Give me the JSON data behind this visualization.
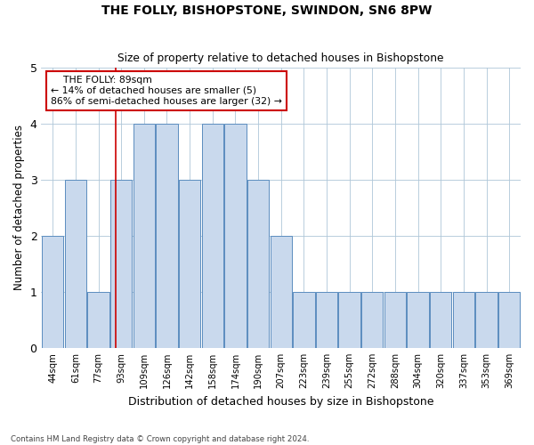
{
  "title": "THE FOLLY, BISHOPSTONE, SWINDON, SN6 8PW",
  "subtitle": "Size of property relative to detached houses in Bishopstone",
  "xlabel": "Distribution of detached houses by size in Bishopstone",
  "ylabel": "Number of detached properties",
  "categories": [
    "44sqm",
    "61sqm",
    "77sqm",
    "93sqm",
    "109sqm",
    "126sqm",
    "142sqm",
    "158sqm",
    "174sqm",
    "190sqm",
    "207sqm",
    "223sqm",
    "239sqm",
    "255sqm",
    "272sqm",
    "288sqm",
    "304sqm",
    "320sqm",
    "337sqm",
    "353sqm",
    "369sqm"
  ],
  "values": [
    2,
    3,
    1,
    3,
    4,
    4,
    3,
    4,
    4,
    3,
    2,
    1,
    1,
    1,
    1,
    1,
    1,
    1,
    1,
    1,
    1
  ],
  "bar_color": "#c9d9ed",
  "bar_edge_color": "#5b8dbf",
  "grid_color": "#aec6d8",
  "subject_size": 89,
  "subject_name": "THE FOLLY",
  "subject_line_color": "#cc0000",
  "annotation_line1": "    THE FOLLY: 89sqm",
  "annotation_line2": "← 14% of detached houses are smaller (5)",
  "annotation_line3": "86% of semi-detached houses are larger (32) →",
  "annotation_box_color": "#ffffff",
  "annotation_box_edge": "#cc0000",
  "ylim": [
    0,
    5
  ],
  "footnote1": "Contains HM Land Registry data © Crown copyright and database right 2024."
}
